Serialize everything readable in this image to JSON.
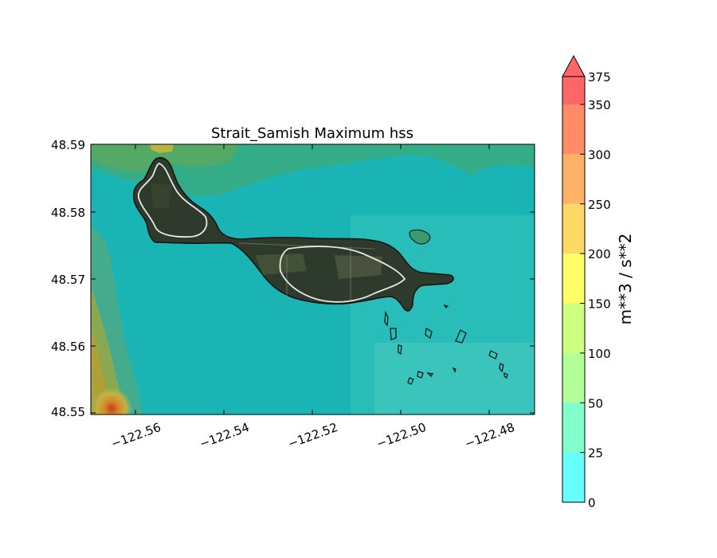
{
  "map": {
    "title": "Strait_Samish Maximum hss",
    "y_ticks": [
      "48.59",
      "48.58",
      "48.57",
      "48.56",
      "48.55"
    ],
    "x_ticks": [
      "−122.56",
      "−122.54",
      "−122.52",
      "−122.50",
      "−122.48"
    ]
  },
  "colorbar": {
    "label": "m**3 / s**2",
    "ticks": [
      "0",
      "25",
      "50",
      "100",
      "150",
      "200",
      "250",
      "300",
      "350",
      "375"
    ],
    "bands": [
      {
        "from": 0,
        "to": 25,
        "color": "#66ffff"
      },
      {
        "from": 25,
        "to": 50,
        "color": "#80ffcc"
      },
      {
        "from": 50,
        "to": 100,
        "color": "#b3ff99"
      },
      {
        "from": 100,
        "to": 150,
        "color": "#ccff80"
      },
      {
        "from": 150,
        "to": 200,
        "color": "#ffff66"
      },
      {
        "from": 200,
        "to": 250,
        "color": "#ffd966"
      },
      {
        "from": 250,
        "to": 300,
        "color": "#ffb366"
      },
      {
        "from": 300,
        "to": 350,
        "color": "#ff8c66"
      },
      {
        "from": 350,
        "to": 375,
        "color": "#ff6666"
      }
    ],
    "extend_color": "#ff6666"
  }
}
